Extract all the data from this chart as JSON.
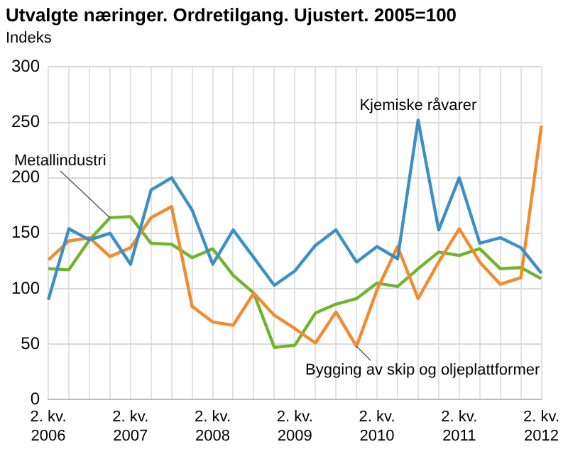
{
  "chart_data": {
    "type": "line",
    "title": "Utvalgte næringer. Ordretilgang. Ujustert. 2005=100",
    "ylabel": "Indeks",
    "categories": [
      "2. kv.\n2006",
      null,
      null,
      null,
      "2. kv.\n2007",
      null,
      null,
      null,
      "2. kv.\n2008",
      null,
      null,
      null,
      "2. kv.\n2009",
      null,
      null,
      null,
      "2. kv.\n2010",
      null,
      null,
      null,
      "2. kv.\n2011",
      null,
      null,
      null,
      "2. kv.\n2012"
    ],
    "series": [
      {
        "name": "Kjemiske råvarer",
        "color": "#3a8fc7",
        "values": [
          90,
          154,
          144,
          150,
          122,
          189,
          200,
          171,
          122,
          153,
          128,
          103,
          116,
          139,
          153,
          124,
          138,
          127,
          252,
          153,
          200,
          141,
          146,
          137,
          114
        ]
      },
      {
        "name": "Bygging av skip og oljeplattformer",
        "color": "#f28a2e",
        "values": [
          126,
          143,
          146,
          129,
          137,
          164,
          174,
          84,
          70,
          67,
          96,
          76,
          64,
          51,
          79,
          48,
          99,
          138,
          91,
          124,
          154,
          124,
          104,
          110,
          247
        ]
      },
      {
        "name": "Metallindustri",
        "color": "#6fb52c",
        "values": [
          118,
          117,
          144,
          164,
          165,
          141,
          140,
          128,
          136,
          112,
          96,
          47,
          49,
          78,
          86,
          91,
          105,
          102,
          118,
          133,
          130,
          136,
          118,
          119,
          109
        ]
      }
    ],
    "ylim": [
      0,
      300
    ],
    "yticks": [
      0,
      50,
      100,
      150,
      200,
      250,
      300
    ],
    "grid": true,
    "legend": false,
    "marker": "none",
    "line_style": "solid"
  }
}
